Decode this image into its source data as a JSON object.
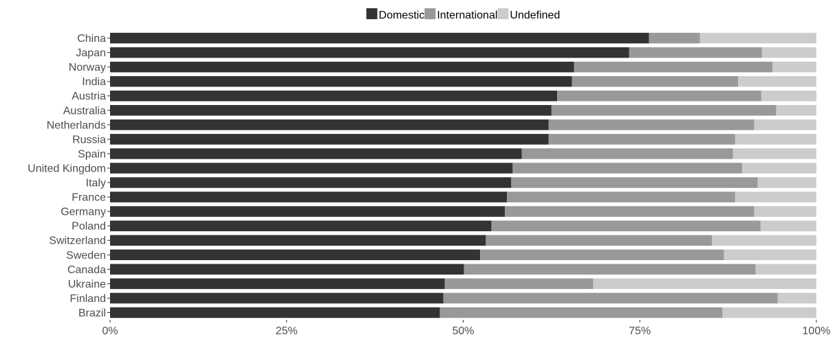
{
  "chart_data": {
    "type": "bar",
    "orientation": "horizontal",
    "stacked": true,
    "normalized": true,
    "categories": [
      "China",
      "Japan",
      "Norway",
      "India",
      "Austria",
      "Australia",
      "Netherlands",
      "Russia",
      "Spain",
      "United Kingdom",
      "Italy",
      "France",
      "Germany",
      "Poland",
      "Switzerland",
      "Sweden",
      "Canada",
      "Ukraine",
      "Finland",
      "Brazil"
    ],
    "series": [
      {
        "name": "Domestic",
        "color": "#333333",
        "values": [
          76.3,
          73.5,
          65.7,
          65.4,
          63.3,
          62.5,
          62.1,
          62.1,
          58.3,
          57.0,
          56.8,
          56.2,
          55.9,
          54.0,
          53.2,
          52.4,
          50.1,
          47.4,
          47.2,
          46.7
        ]
      },
      {
        "name": "International",
        "color": "#999999",
        "values": [
          7.2,
          18.8,
          28.1,
          23.5,
          28.9,
          31.8,
          29.1,
          26.4,
          29.9,
          32.5,
          34.9,
          32.3,
          35.3,
          38.1,
          32.0,
          34.5,
          41.3,
          21.0,
          47.3,
          40.0
        ]
      },
      {
        "name": "Undefined",
        "color": "#cccccc",
        "values": [
          16.5,
          7.7,
          6.2,
          11.1,
          7.8,
          5.7,
          8.8,
          11.5,
          11.8,
          10.5,
          8.3,
          11.5,
          8.8,
          7.9,
          14.8,
          13.1,
          8.6,
          31.6,
          5.5,
          13.3
        ]
      }
    ],
    "xlim": [
      0,
      100
    ],
    "xticks": [
      "0%",
      "25%",
      "50%",
      "75%",
      "100%"
    ],
    "grid": false,
    "legend_position": "top"
  }
}
